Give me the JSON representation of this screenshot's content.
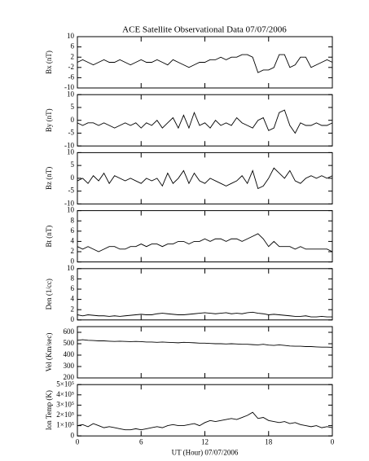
{
  "chart_data": [
    {
      "type": "line",
      "title": "ACE Satellite Observational Data   07/07/2006",
      "ylabel": "Bx (nT)",
      "x": [
        0,
        0.5,
        1,
        1.5,
        2,
        2.5,
        3,
        3.5,
        4,
        4.5,
        5,
        5.5,
        6,
        6.5,
        7,
        7.5,
        8,
        8.5,
        9,
        9.5,
        10,
        10.5,
        11,
        11.5,
        12,
        12.5,
        13,
        13.5,
        14,
        14.5,
        15,
        15.5,
        16,
        16.5,
        17,
        17.5,
        18,
        18.5,
        19,
        19.5,
        20,
        20.5,
        21,
        21.5,
        22,
        22.5,
        23,
        23.5,
        24
      ],
      "values": [
        0,
        1,
        0,
        -1,
        0,
        1,
        0,
        0,
        1,
        0,
        -1,
        0,
        1,
        0,
        0,
        1,
        0,
        -1,
        1,
        0,
        -1,
        -2,
        -1,
        0,
        0,
        1,
        1,
        2,
        1,
        2,
        2,
        3,
        3,
        2,
        -4,
        -3,
        -3,
        -2,
        3,
        3,
        -2,
        -1,
        2,
        2,
        -2,
        -1,
        0,
        1,
        0
      ],
      "color": "#000000",
      "xlim": [
        0,
        24
      ],
      "ylim": [
        -10,
        10
      ],
      "yticks": [
        -10,
        -6,
        -2,
        2,
        6,
        10
      ]
    },
    {
      "type": "line",
      "ylabel": "By (nT)",
      "x": [
        0,
        0.5,
        1,
        1.5,
        2,
        2.5,
        3,
        3.5,
        4,
        4.5,
        5,
        5.5,
        6,
        6.5,
        7,
        7.5,
        8,
        8.5,
        9,
        9.5,
        10,
        10.5,
        11,
        11.5,
        12,
        12.5,
        13,
        13.5,
        14,
        14.5,
        15,
        15.5,
        16,
        16.5,
        17,
        17.5,
        18,
        18.5,
        19,
        19.5,
        20,
        20.5,
        21,
        21.5,
        22,
        22.5,
        23,
        23.5,
        24
      ],
      "values": [
        -1,
        -2,
        -1,
        -1,
        -2,
        -1,
        -2,
        -3,
        -2,
        -1,
        -2,
        -1,
        -3,
        -1,
        -2,
        0,
        -3,
        -1,
        1,
        -3,
        2,
        -3,
        3,
        -2,
        -1,
        -3,
        0,
        -2,
        -1,
        -2,
        1,
        -1,
        -2,
        -3,
        0,
        1,
        -4,
        -3,
        3,
        4,
        -2,
        -5,
        -1,
        -2,
        -2,
        -1,
        -2,
        -2,
        -1
      ],
      "color": "#000000",
      "xlim": [
        0,
        24
      ],
      "ylim": [
        -10,
        10
      ],
      "yticks": [
        -10,
        -5,
        0,
        5,
        10
      ]
    },
    {
      "type": "line",
      "ylabel": "Bz (nT)",
      "x": [
        0,
        0.5,
        1,
        1.5,
        2,
        2.5,
        3,
        3.5,
        4,
        4.5,
        5,
        5.5,
        6,
        6.5,
        7,
        7.5,
        8,
        8.5,
        9,
        9.5,
        10,
        10.5,
        11,
        11.5,
        12,
        12.5,
        13,
        13.5,
        14,
        14.5,
        15,
        15.5,
        16,
        16.5,
        17,
        17.5,
        18,
        18.5,
        19,
        19.5,
        20,
        20.5,
        21,
        21.5,
        22,
        22.5,
        23,
        23.5,
        24
      ],
      "values": [
        -1,
        0,
        -2,
        1,
        -1,
        2,
        -2,
        1,
        0,
        -1,
        0,
        -1,
        -2,
        0,
        -1,
        0,
        -3,
        2,
        -2,
        0,
        3,
        -2,
        2,
        -1,
        -2,
        0,
        -1,
        -2,
        -3,
        -2,
        -1,
        1,
        -2,
        3,
        -4,
        -3,
        0,
        4,
        2,
        0,
        3,
        -1,
        -2,
        0,
        1,
        0,
        1,
        0,
        1
      ],
      "color": "#000000",
      "xlim": [
        0,
        24
      ],
      "ylim": [
        -10,
        10
      ],
      "yticks": [
        -10,
        -5,
        0,
        5,
        10
      ]
    },
    {
      "type": "line",
      "ylabel": "Bt (nT)",
      "x": [
        0,
        0.5,
        1,
        1.5,
        2,
        2.5,
        3,
        3.5,
        4,
        4.5,
        5,
        5.5,
        6,
        6.5,
        7,
        7.5,
        8,
        8.5,
        9,
        9.5,
        10,
        10.5,
        11,
        11.5,
        12,
        12.5,
        13,
        13.5,
        14,
        14.5,
        15,
        15.5,
        16,
        16.5,
        17,
        17.5,
        18,
        18.5,
        19,
        19.5,
        20,
        20.5,
        21,
        21.5,
        22,
        22.5,
        23,
        23.5,
        24
      ],
      "values": [
        3,
        2.5,
        3,
        2.5,
        2,
        2.5,
        3,
        3,
        2.5,
        2.5,
        3,
        3,
        3.5,
        3,
        3.5,
        3.5,
        3,
        3.5,
        3.5,
        4,
        4,
        3.5,
        4,
        4,
        4.5,
        4,
        4.5,
        4.5,
        4,
        4.5,
        4.5,
        4,
        4.5,
        5,
        5.5,
        4.5,
        3,
        4,
        3,
        3,
        3,
        2.5,
        3,
        2.5,
        2.5,
        2.5,
        2.5,
        2.5,
        2
      ],
      "color": "#000000",
      "xlim": [
        0,
        24
      ],
      "ylim": [
        0,
        10
      ],
      "yticks": [
        0,
        2,
        4,
        6,
        8,
        10
      ]
    },
    {
      "type": "line",
      "ylabel": "Den (1/cc)",
      "x": [
        0,
        0.5,
        1,
        1.5,
        2,
        2.5,
        3,
        3.5,
        4,
        4.5,
        5,
        5.5,
        6,
        6.5,
        7,
        7.5,
        8,
        8.5,
        9,
        9.5,
        10,
        10.5,
        11,
        11.5,
        12,
        12.5,
        13,
        13.5,
        14,
        14.5,
        15,
        15.5,
        16,
        16.5,
        17,
        17.5,
        18,
        18.5,
        19,
        19.5,
        20,
        20.5,
        21,
        21.5,
        22,
        22.5,
        23,
        23.5,
        24
      ],
      "values": [
        1,
        0.8,
        1,
        0.9,
        0.8,
        0.8,
        0.7,
        0.8,
        0.7,
        0.8,
        0.9,
        1,
        1.1,
        1,
        1,
        1.2,
        1.3,
        1.2,
        1.1,
        1,
        1,
        1.1,
        1.2,
        1.3,
        1.4,
        1.3,
        1.2,
        1.3,
        1.4,
        1.2,
        1.3,
        1.2,
        1.4,
        1.5,
        1.3,
        1.2,
        1,
        1.1,
        1,
        0.9,
        0.8,
        0.7,
        0.7,
        0.8,
        0.6,
        0.6,
        0.7,
        0.6,
        0.6
      ],
      "color": "#000000",
      "xlim": [
        0,
        24
      ],
      "ylim": [
        0,
        10
      ],
      "yticks": [
        0,
        2,
        4,
        6,
        8,
        10
      ]
    },
    {
      "type": "line",
      "ylabel": "Vel (Km/sec)",
      "x": [
        0,
        0.5,
        1,
        1.5,
        2,
        2.5,
        3,
        3.5,
        4,
        4.5,
        5,
        5.5,
        6,
        6.5,
        7,
        7.5,
        8,
        8.5,
        9,
        9.5,
        10,
        10.5,
        11,
        11.5,
        12,
        12.5,
        13,
        13.5,
        14,
        14.5,
        15,
        15.5,
        16,
        16.5,
        17,
        17.5,
        18,
        18.5,
        19,
        19.5,
        20,
        20.5,
        21,
        21.5,
        22,
        22.5,
        23,
        23.5,
        24
      ],
      "values": [
        530,
        535,
        530,
        528,
        525,
        525,
        522,
        520,
        522,
        520,
        518,
        520,
        518,
        515,
        515,
        512,
        515,
        512,
        510,
        508,
        512,
        510,
        508,
        505,
        505,
        502,
        500,
        500,
        498,
        500,
        498,
        495,
        495,
        492,
        490,
        495,
        488,
        485,
        490,
        485,
        480,
        478,
        478,
        475,
        475,
        472,
        470,
        470,
        468
      ],
      "color": "#000000",
      "xlim": [
        0,
        24
      ],
      "ylim": [
        200,
        650
      ],
      "yticks": [
        200,
        300,
        400,
        500,
        600
      ]
    },
    {
      "type": "line",
      "ylabel": "Ion Temp (K)",
      "xlabel": "UT (Hour)   07/07/2006",
      "x": [
        0,
        0.5,
        1,
        1.5,
        2,
        2.5,
        3,
        3.5,
        4,
        4.5,
        5,
        5.5,
        6,
        6.5,
        7,
        7.5,
        8,
        8.5,
        9,
        9.5,
        10,
        10.5,
        11,
        11.5,
        12,
        12.5,
        13,
        13.5,
        14,
        14.5,
        15,
        15.5,
        16,
        16.5,
        17,
        17.5,
        18,
        18.5,
        19,
        19.5,
        20,
        20.5,
        21,
        21.5,
        22,
        22.5,
        23,
        23.5,
        24
      ],
      "values": [
        100000,
        110000,
        90000,
        120000,
        100000,
        80000,
        90000,
        80000,
        70000,
        60000,
        60000,
        70000,
        60000,
        70000,
        80000,
        90000,
        80000,
        100000,
        110000,
        100000,
        100000,
        110000,
        120000,
        100000,
        130000,
        150000,
        140000,
        150000,
        160000,
        170000,
        160000,
        180000,
        200000,
        230000,
        170000,
        180000,
        150000,
        140000,
        130000,
        140000,
        120000,
        130000,
        110000,
        100000,
        90000,
        100000,
        80000,
        90000,
        80000
      ],
      "color": "#000000",
      "xlim": [
        0,
        24
      ],
      "ylim": [
        0,
        500000
      ],
      "yticks": [
        0,
        {
          "value": 100000,
          "label": "1×10⁵"
        },
        {
          "value": 200000,
          "label": "2×10⁵"
        },
        {
          "value": 300000,
          "label": "3×10⁵"
        },
        {
          "value": 400000,
          "label": "4×10⁵"
        },
        {
          "value": 500000,
          "label": "5×10⁵"
        }
      ],
      "xticks": [
        0,
        6,
        12,
        18,
        {
          "value": 24,
          "label": "0"
        }
      ]
    }
  ]
}
